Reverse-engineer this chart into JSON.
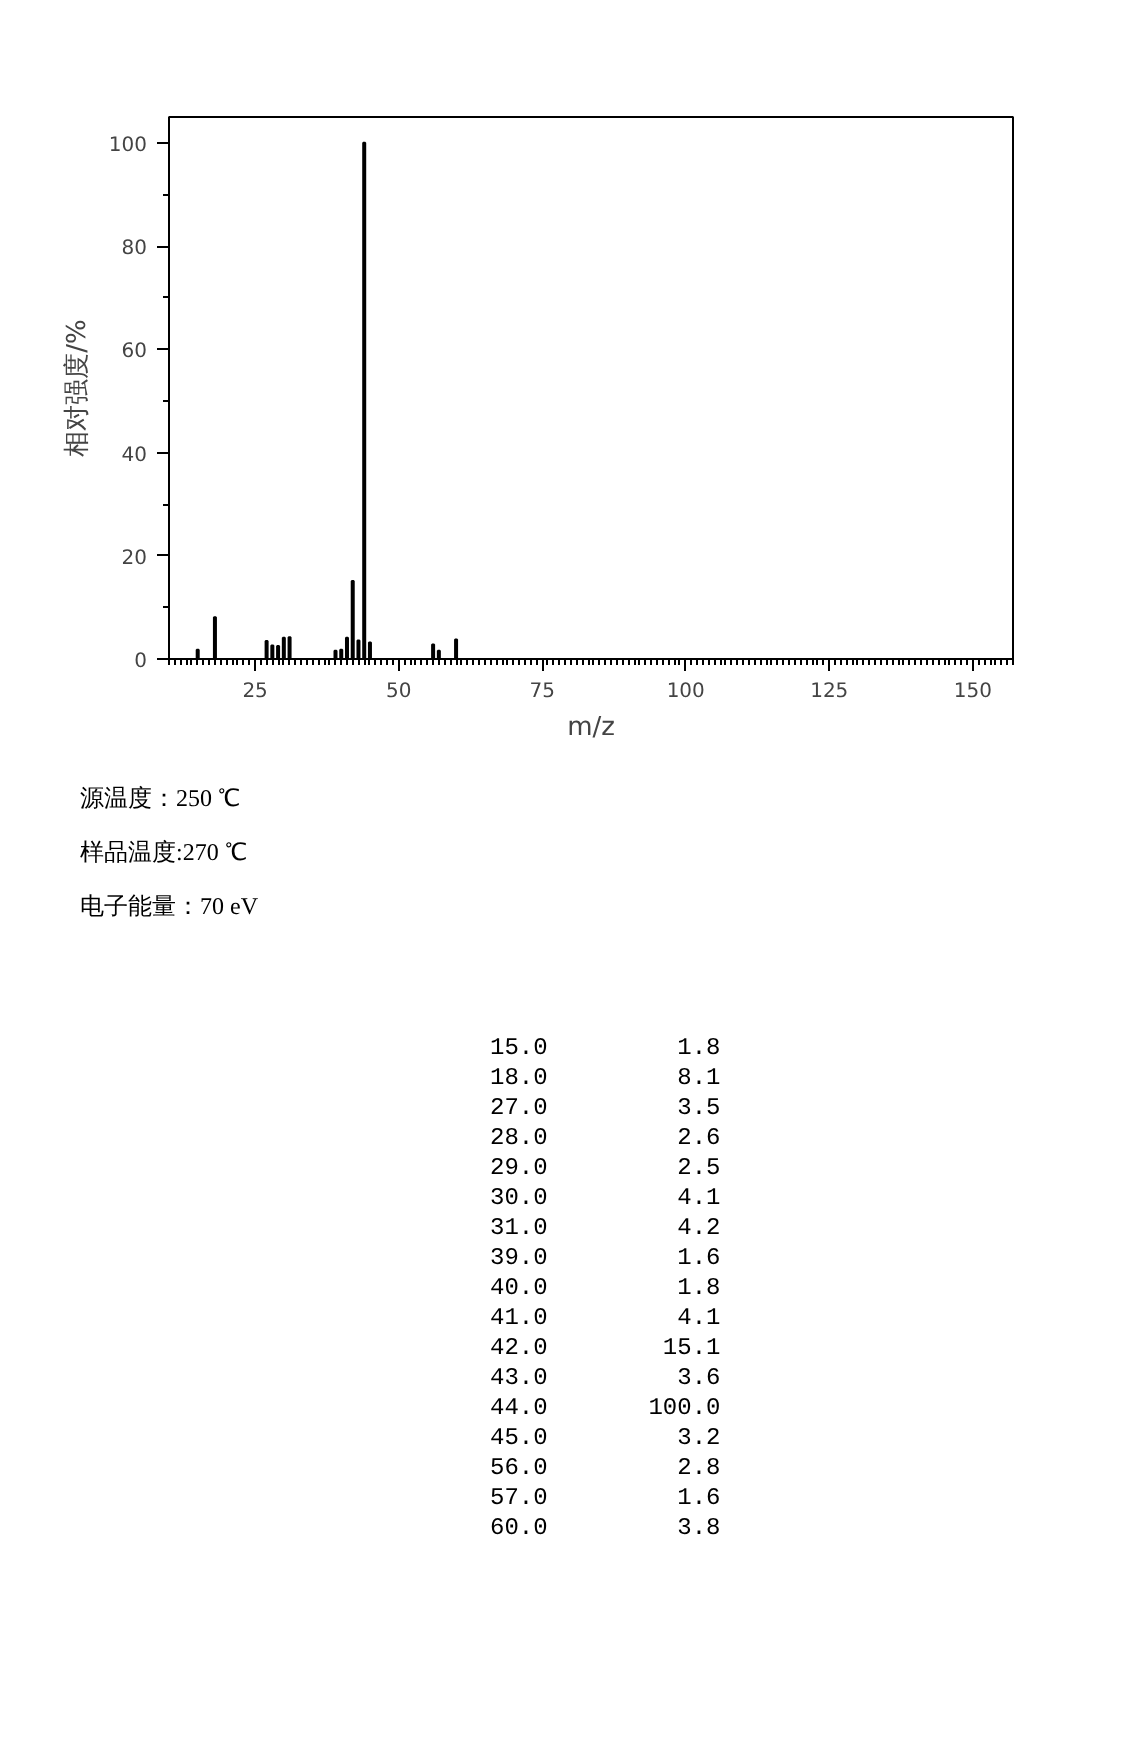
{
  "chart_data": {
    "type": "bar",
    "xlabel": "m/z",
    "ylabel": "相对强度/%",
    "x": [
      15,
      18,
      27,
      28,
      29,
      30,
      31,
      39,
      40,
      41,
      42,
      43,
      44,
      45,
      56,
      57,
      60
    ],
    "values": [
      1.8,
      8.1,
      3.5,
      2.6,
      2.5,
      4.1,
      4.2,
      1.6,
      1.8,
      4.1,
      15.1,
      3.6,
      100.0,
      3.2,
      2.8,
      1.6,
      3.8
    ],
    "color": "#000000",
    "xlim": [
      10,
      157
    ],
    "xticks": [
      25,
      50,
      75,
      100,
      125,
      150
    ],
    "ylim": [
      0,
      105
    ],
    "yticks": [
      0,
      20,
      40,
      60,
      80,
      100
    ],
    "grid": false,
    "annotations": [
      "源温度：250 ℃",
      "样品温度:270 ℃",
      "电子能量：70 eV",
      "15.0         1.8",
      "18.0         8.1",
      "27.0         3.5",
      "28.0         2.6",
      "29.0         2.5",
      "30.0         4.1",
      "31.0         4.2",
      "39.0         1.6",
      "40.0         1.8",
      "41.0         4.1",
      "42.0        15.1",
      "43.0         3.6",
      "44.0       100.0",
      "45.0         3.2",
      "56.0         2.8",
      "57.0         1.6",
      "60.0         3.8"
    ]
  }
}
